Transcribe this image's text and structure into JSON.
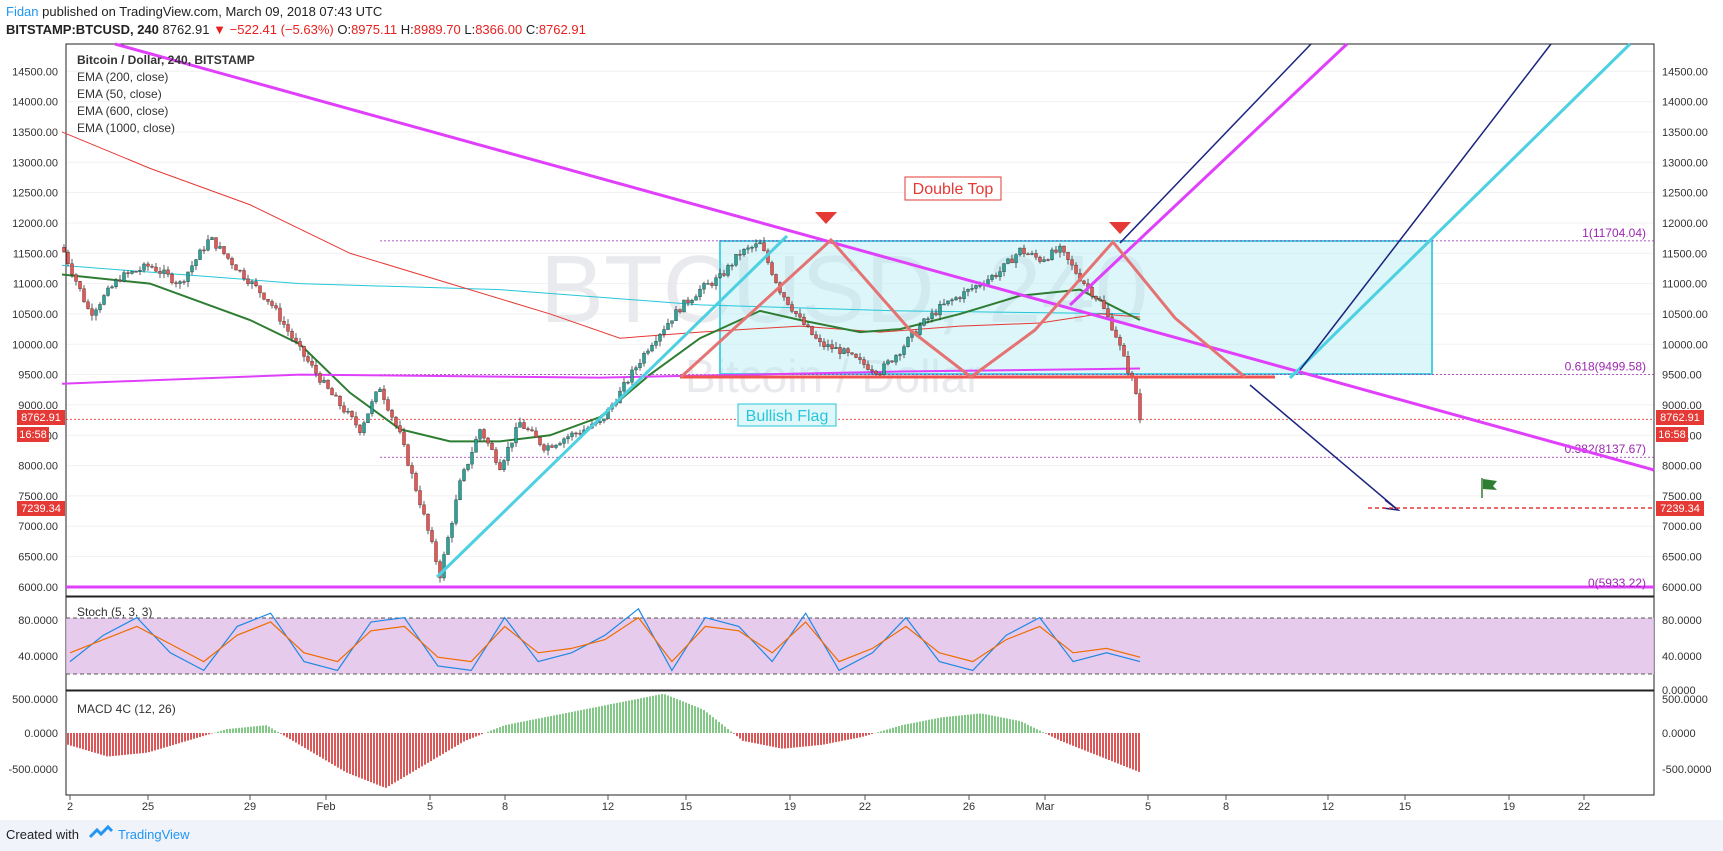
{
  "header": {
    "author": "Fidan",
    "published": "published on TradingView.com, March 09, 2018 07:43 UTC",
    "symbol": "BITSTAMP:BTCUSD, 240",
    "last": "8762.91",
    "change": "−522.41 (−5.63%)",
    "ohlc": [
      {
        "label": "O:",
        "value": "8975.11"
      },
      {
        "label": "H:",
        "value": "8989.70"
      },
      {
        "label": "L:",
        "value": "8366.00"
      },
      {
        "label": "C:",
        "value": "8762.91"
      }
    ]
  },
  "legend": {
    "title": "Bitcoin / Dollar, 240, BITSTAMP",
    "indicators": [
      "EMA (200, close)",
      "EMA (50, close)",
      "EMA (600, close)",
      "EMA (1000, close)"
    ]
  },
  "watermark": {
    "symbol": "BTCUSD, 240",
    "name": "Bitcoin / Dollar"
  },
  "annotations": {
    "double_top": "Double Top",
    "bullish_flag": "Bullish Flag"
  },
  "price_labels": {
    "current": "8762.91",
    "countdown": "16:58",
    "target": "7239.34"
  },
  "stoch": {
    "label": "Stoch (5, 3, 3)",
    "ticks": [
      "80.0000",
      "40.0000",
      "0.0000"
    ]
  },
  "macd": {
    "label": "MACD 4C (12, 26)",
    "ticks": [
      "500.0000",
      "0.0000",
      "-500.0000"
    ]
  },
  "footer": {
    "created_with": "Created with",
    "brand": "TradingView"
  },
  "colors": {
    "ema200": "#2e7d32",
    "ema50": "#e53935",
    "ema600": "#26c6da",
    "ema1000": "#e040fb",
    "bull": "#26a69a",
    "bear": "#ef5350",
    "fib": "#9c27b0",
    "arrow": "#1a237e"
  },
  "chart_data": {
    "type": "candlestick",
    "title": "Bitcoin / Dollar, 240, BITSTAMP",
    "ylim": [
      5850,
      14950
    ],
    "price_ticks": [
      6000,
      6500,
      7000,
      7500,
      8000,
      8500,
      9000,
      9500,
      10000,
      10500,
      11000,
      11500,
      12000,
      12500,
      13000,
      13500,
      14000,
      14500
    ],
    "x_ticks": [
      "2",
      "25",
      "29",
      "Feb",
      "5",
      "8",
      "12",
      "15",
      "19",
      "22",
      "26",
      "Mar",
      "5",
      "8",
      "12",
      "15",
      "19",
      "22"
    ],
    "fib_levels": [
      {
        "label": "1(11704.04)",
        "value": 11704.04
      },
      {
        "label": "0.618(9499.58)",
        "value": 9499.58
      },
      {
        "label": "0.382(8137.67)",
        "value": 8137.67
      },
      {
        "label": "0(5933.22)",
        "value": 5933.22
      }
    ],
    "price_path": [
      [
        62,
        11600
      ],
      [
        90,
        10500
      ],
      [
        120,
        11100
      ],
      [
        150,
        11300
      ],
      [
        180,
        11000
      ],
      [
        210,
        11750
      ],
      [
        240,
        11200
      ],
      [
        270,
        10700
      ],
      [
        300,
        9900
      ],
      [
        330,
        9200
      ],
      [
        360,
        8600
      ],
      [
        380,
        9300
      ],
      [
        400,
        8500
      ],
      [
        420,
        7400
      ],
      [
        440,
        6200
      ],
      [
        460,
        7700
      ],
      [
        480,
        8600
      ],
      [
        500,
        8000
      ],
      [
        520,
        8700
      ],
      [
        545,
        8300
      ],
      [
        570,
        8500
      ],
      [
        600,
        8700
      ],
      [
        620,
        9200
      ],
      [
        650,
        10000
      ],
      [
        680,
        10600
      ],
      [
        700,
        10900
      ],
      [
        720,
        11100
      ],
      [
        740,
        11500
      ],
      [
        760,
        11650
      ],
      [
        780,
        10900
      ],
      [
        800,
        10400
      ],
      [
        820,
        10000
      ],
      [
        840,
        9900
      ],
      [
        860,
        9700
      ],
      [
        880,
        9550
      ],
      [
        900,
        9900
      ],
      [
        920,
        10300
      ],
      [
        940,
        10600
      ],
      [
        960,
        10800
      ],
      [
        980,
        11000
      ],
      [
        1000,
        11200
      ],
      [
        1020,
        11550
      ],
      [
        1040,
        11400
      ],
      [
        1060,
        11550
      ],
      [
        1080,
        11100
      ],
      [
        1100,
        10700
      ],
      [
        1115,
        10200
      ],
      [
        1125,
        9700
      ],
      [
        1135,
        9300
      ],
      [
        1140,
        8762.91
      ]
    ],
    "ema200": [
      [
        62,
        11150
      ],
      [
        150,
        11000
      ],
      [
        250,
        10400
      ],
      [
        300,
        10000
      ],
      [
        350,
        9200
      ],
      [
        400,
        8600
      ],
      [
        450,
        8400
      ],
      [
        500,
        8400
      ],
      [
        550,
        8500
      ],
      [
        600,
        8800
      ],
      [
        650,
        9500
      ],
      [
        700,
        10100
      ],
      [
        760,
        10550
      ],
      [
        800,
        10400
      ],
      [
        860,
        10200
      ],
      [
        900,
        10250
      ],
      [
        960,
        10500
      ],
      [
        1020,
        10800
      ],
      [
        1080,
        10900
      ],
      [
        1140,
        10400
      ]
    ],
    "ema50": [
      [
        62,
        13500
      ],
      [
        150,
        12900
      ],
      [
        250,
        12300
      ],
      [
        350,
        11500
      ],
      [
        450,
        11000
      ],
      [
        550,
        10500
      ],
      [
        620,
        10100
      ],
      [
        700,
        10200
      ],
      [
        800,
        10300
      ],
      [
        880,
        10200
      ],
      [
        960,
        10300
      ],
      [
        1040,
        10350
      ],
      [
        1100,
        10500
      ],
      [
        1140,
        10450
      ]
    ],
    "ema600": [
      [
        62,
        11300
      ],
      [
        300,
        11000
      ],
      [
        500,
        10900
      ],
      [
        700,
        10650
      ],
      [
        900,
        10550
      ],
      [
        1140,
        10500
      ]
    ],
    "ema1000": [
      [
        62,
        9350
      ],
      [
        300,
        9500
      ],
      [
        600,
        9450
      ],
      [
        900,
        9550
      ],
      [
        1140,
        9600
      ]
    ],
    "stoch_series": [
      {
        "name": "%K",
        "values": [
          30,
          60,
          80,
          40,
          20,
          70,
          85,
          30,
          20,
          75,
          80,
          25,
          20,
          80,
          30,
          40,
          60,
          90,
          20,
          80,
          70,
          30,
          85,
          20,
          40,
          80,
          30,
          20,
          60,
          80,
          30,
          40,
          30
        ]
      },
      {
        "name": "%D",
        "values": [
          40,
          55,
          70,
          50,
          30,
          60,
          75,
          40,
          30,
          65,
          70,
          35,
          30,
          70,
          40,
          45,
          55,
          80,
          30,
          70,
          65,
          40,
          75,
          30,
          45,
          70,
          40,
          30,
          55,
          70,
          40,
          45,
          35
        ]
      }
    ],
    "macd_hist": [
      -150,
      -300,
      -250,
      -100,
      50,
      100,
      -200,
      -500,
      -700,
      -400,
      -100,
      100,
      200,
      300,
      400,
      500,
      300,
      -100,
      -200,
      -150,
      -50,
      100,
      200,
      250,
      150,
      -100,
      -300,
      -500
    ]
  }
}
